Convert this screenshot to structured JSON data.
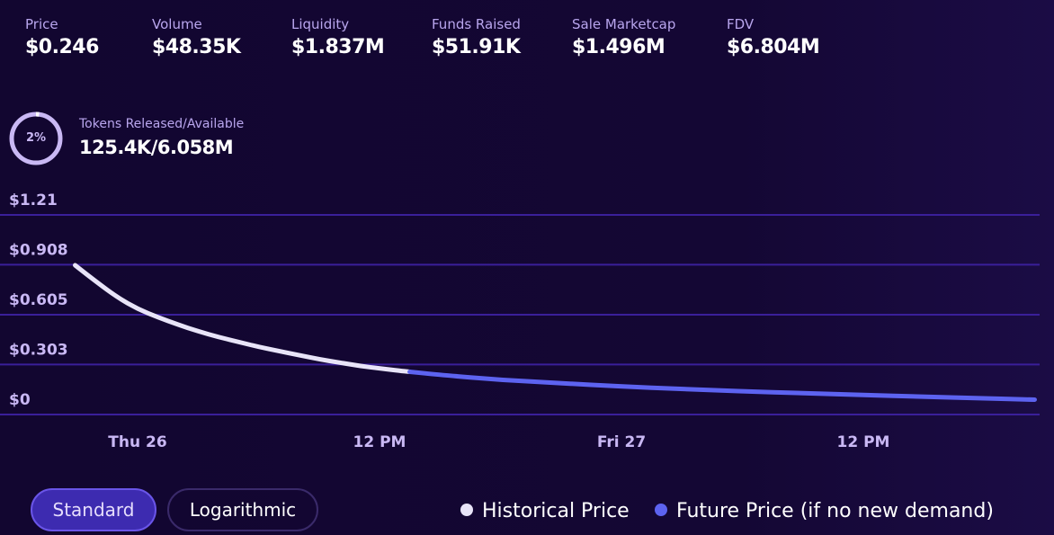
{
  "stats": [
    {
      "label": "Price",
      "value": "$0.246"
    },
    {
      "label": "Volume",
      "value": "$48.35K"
    },
    {
      "label": "Liquidity",
      "value": "$1.837M"
    },
    {
      "label": "Funds Raised",
      "value": "$51.91K"
    },
    {
      "label": "Sale Marketcap",
      "value": "$1.496M"
    },
    {
      "label": "FDV",
      "value": "$6.804M"
    }
  ],
  "tokens": {
    "percent_label": "2%",
    "percent": 0.02,
    "label": "Tokens Released/Available",
    "value": "125.4K/6.058M"
  },
  "colors": {
    "historical": "#e8e4f8",
    "future": "#5d63f0",
    "grid": "#3a1f9a",
    "axis_text": "#c9b8f4",
    "ring": "#c9b8f4",
    "ring_track": "#3b2a72"
  },
  "chart_data": {
    "type": "line",
    "title": "",
    "xlabel": "",
    "ylabel": "",
    "y_ticks": [
      0,
      0.303,
      0.605,
      0.908,
      1.21
    ],
    "y_tick_labels": [
      "$0",
      "$0.303",
      "$0.605",
      "$0.908",
      "$1.21"
    ],
    "ylim": [
      0,
      1.21
    ],
    "x_range_hours": [
      -10,
      46
    ],
    "x_ticks": [
      {
        "hour": 0,
        "label": "Thu 26"
      },
      {
        "hour": 12,
        "label": "12 PM"
      },
      {
        "hour": 24,
        "label": "Fri 27"
      },
      {
        "hour": 36,
        "label": "12 PM"
      }
    ],
    "grid": true,
    "series": [
      {
        "name": "Historical Price",
        "points": [
          [
            -3.1,
            0.905
          ],
          [
            -2,
            0.8
          ],
          [
            -1,
            0.71
          ],
          [
            0,
            0.64
          ],
          [
            1,
            0.59
          ],
          [
            2,
            0.545
          ],
          [
            3,
            0.505
          ],
          [
            4,
            0.47
          ],
          [
            5,
            0.44
          ],
          [
            6,
            0.41
          ],
          [
            7,
            0.385
          ],
          [
            8,
            0.36
          ],
          [
            9,
            0.335
          ],
          [
            10,
            0.315
          ],
          [
            11,
            0.295
          ],
          [
            12,
            0.28
          ],
          [
            13,
            0.265
          ],
          [
            13.5,
            0.259
          ]
        ]
      },
      {
        "name": "Future Price (if no new demand)",
        "points": [
          [
            13.5,
            0.259
          ],
          [
            15,
            0.24
          ],
          [
            18,
            0.21
          ],
          [
            21,
            0.19
          ],
          [
            24,
            0.17
          ],
          [
            27,
            0.155
          ],
          [
            30,
            0.14
          ],
          [
            33,
            0.13
          ],
          [
            36,
            0.118
          ],
          [
            39,
            0.108
          ],
          [
            42,
            0.098
          ],
          [
            44.5,
            0.09
          ]
        ]
      }
    ]
  },
  "controls": {
    "standard_label": "Standard",
    "log_label": "Logarithmic"
  },
  "legend": {
    "historical_label": "Historical Price",
    "future_label": "Future Price (if no new demand)"
  }
}
